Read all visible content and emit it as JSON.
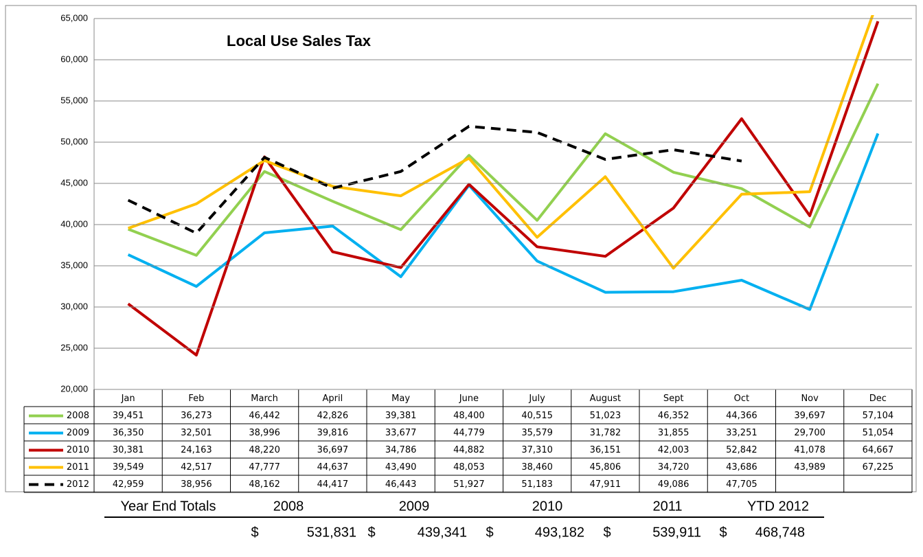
{
  "chart_data": {
    "type": "line",
    "title": "Local Use Sales Tax",
    "categories": [
      "Jan",
      "Feb",
      "March",
      "April",
      "May",
      "June",
      "July",
      "August",
      "Sept",
      "Oct",
      "Nov",
      "Dec"
    ],
    "ylim": [
      20000,
      65000
    ],
    "yticks": [
      {
        "value": 20000,
        "label": "20,000"
      },
      {
        "value": 25000,
        "label": "25,000"
      },
      {
        "value": 30000,
        "label": "30,000"
      },
      {
        "value": 35000,
        "label": "35,000"
      },
      {
        "value": 40000,
        "label": "40,000"
      },
      {
        "value": 45000,
        "label": "45,000"
      },
      {
        "value": 50000,
        "label": "50,000"
      },
      {
        "value": 55000,
        "label": "55,000"
      },
      {
        "value": 60000,
        "label": "60,000"
      },
      {
        "value": 65000,
        "label": "65,000"
      }
    ],
    "grid": true,
    "series": [
      {
        "name": "2008",
        "color": "#92d050",
        "dashed": false,
        "values": [
          39451,
          36273,
          46442,
          42826,
          39381,
          48400,
          40515,
          51023,
          46352,
          44366,
          39697,
          57104
        ],
        "value_labels": [
          "39,451",
          "36,273",
          "46,442",
          "42,826",
          "39,381",
          "48,400",
          "40,515",
          "51,023",
          "46,352",
          "44,366",
          "39,697",
          "57,104"
        ]
      },
      {
        "name": "2009",
        "color": "#00b0f0",
        "dashed": false,
        "values": [
          36350,
          32501,
          38996,
          39816,
          33677,
          44779,
          35579,
          31782,
          31855,
          33251,
          29700,
          51054
        ],
        "value_labels": [
          "36,350",
          "32,501",
          "38,996",
          "39,816",
          "33,677",
          "44,779",
          "35,579",
          "31,782",
          "31,855",
          "33,251",
          "29,700",
          "51,054"
        ]
      },
      {
        "name": "2010",
        "color": "#c00000",
        "dashed": false,
        "values": [
          30381,
          24163,
          48220,
          36697,
          34786,
          44882,
          37310,
          36151,
          42003,
          52842,
          41078,
          64667
        ],
        "value_labels": [
          "30,381",
          "24,163",
          "48,220",
          "36,697",
          "34,786",
          "44,882",
          "37,310",
          "36,151",
          "42,003",
          "52,842",
          "41,078",
          "64,667"
        ]
      },
      {
        "name": "2011",
        "color": "#ffc000",
        "dashed": false,
        "values": [
          39549,
          42517,
          47777,
          44637,
          43490,
          48053,
          38460,
          45806,
          34720,
          43686,
          43989,
          67225
        ],
        "value_labels": [
          "39,549",
          "42,517",
          "47,777",
          "44,637",
          "43,490",
          "48,053",
          "38,460",
          "45,806",
          "34,720",
          "43,686",
          "43,989",
          "67,225"
        ]
      },
      {
        "name": "2012",
        "color": "#000000",
        "dashed": true,
        "values": [
          42959,
          38956,
          48162,
          44417,
          46443,
          51927,
          51183,
          47911,
          49086,
          47705,
          null,
          null
        ],
        "value_labels": [
          "42,959",
          "38,956",
          "48,162",
          "44,417",
          "46,443",
          "51,927",
          "51,183",
          "47,911",
          "49,086",
          "47,705",
          null,
          null
        ]
      }
    ]
  },
  "totals": {
    "title": "Year End Totals",
    "headers": [
      "2008",
      "2009",
      "2010",
      "2011",
      "YTD 2012"
    ],
    "currency": "$",
    "values": [
      "531,831",
      "439,341",
      "493,182",
      "539,911",
      "468,748"
    ]
  }
}
